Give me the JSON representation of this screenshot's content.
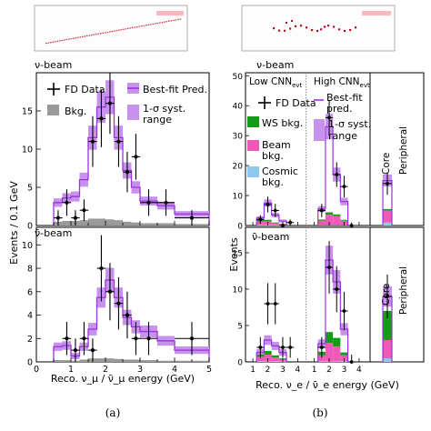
{
  "captions": {
    "left": "(a)",
    "right": "(b)"
  },
  "chart_data": [
    {
      "id": "numu-nu",
      "type": "histogram",
      "beam_label": "ν-beam",
      "xlim": [
        0,
        5
      ],
      "ylim": [
        0,
        20
      ],
      "yticks": [
        0,
        5,
        10,
        15
      ],
      "legend": {
        "data": "FD Data",
        "bkg": "Bkg.",
        "pred": "Best-fit Pred.",
        "band": [
          "1-σ syst.",
          "range"
        ]
      },
      "edges": [
        0.5,
        0.75,
        1.0,
        1.25,
        1.5,
        1.75,
        2.0,
        2.25,
        2.5,
        2.75,
        3.0,
        3.5,
        4.0,
        5.0
      ],
      "prediction": [
        3.0,
        3.6,
        3.8,
        6.0,
        11.5,
        15.5,
        16.8,
        11.5,
        7.2,
        5.0,
        3.2,
        2.6,
        1.5
      ],
      "background": [
        0.5,
        0.6,
        0.6,
        0.7,
        0.9,
        0.9,
        0.8,
        0.7,
        0.5,
        0.4,
        0.3,
        0.3,
        0.2
      ],
      "data": [
        {
          "x": 0.63,
          "y": 1
        },
        {
          "x": 0.88,
          "y": 3
        },
        {
          "x": 1.13,
          "y": 1
        },
        {
          "x": 1.38,
          "y": 2
        },
        {
          "x": 1.63,
          "y": 11
        },
        {
          "x": 1.88,
          "y": 14
        },
        {
          "x": 2.13,
          "y": 16
        },
        {
          "x": 2.38,
          "y": 11
        },
        {
          "x": 2.63,
          "y": 7
        },
        {
          "x": 2.88,
          "y": 9
        },
        {
          "x": 3.25,
          "y": 3
        },
        {
          "x": 3.75,
          "y": 3
        },
        {
          "x": 4.5,
          "y": 1
        }
      ]
    },
    {
      "id": "numu-nubar",
      "type": "histogram",
      "beam_label": "ν̄-beam",
      "xlim": [
        0,
        5
      ],
      "ylim": [
        0,
        11.5
      ],
      "yticks": [
        0,
        2,
        4,
        6,
        8,
        10
      ],
      "xticks": [
        0,
        1,
        2,
        3,
        4,
        5
      ],
      "xlabel": "Reco. ν_μ / ν̄_μ energy (GeV)",
      "edges": [
        0.5,
        0.75,
        1.0,
        1.25,
        1.5,
        1.75,
        2.0,
        2.25,
        2.5,
        2.75,
        3.0,
        3.5,
        4.0,
        5.0
      ],
      "prediction": [
        1.3,
        1.4,
        0.5,
        1.3,
        2.8,
        5.5,
        7.0,
        5.5,
        3.8,
        3.0,
        2.6,
        1.8,
        1.0
      ],
      "background": [
        0.15,
        0.15,
        0.1,
        0.2,
        0.3,
        0.3,
        0.3,
        0.25,
        0.2,
        0.2,
        0.15,
        0.1,
        0.1
      ],
      "data": [
        {
          "x": 0.88,
          "y": 2
        },
        {
          "x": 1.13,
          "y": 1
        },
        {
          "x": 1.38,
          "y": 2
        },
        {
          "x": 1.63,
          "y": 1
        },
        {
          "x": 1.88,
          "y": 8
        },
        {
          "x": 2.13,
          "y": 6
        },
        {
          "x": 2.38,
          "y": 5
        },
        {
          "x": 2.63,
          "y": 4
        },
        {
          "x": 2.88,
          "y": 2
        },
        {
          "x": 3.25,
          "y": 2
        },
        {
          "x": 4.5,
          "y": 2
        }
      ]
    },
    {
      "id": "nue-nu",
      "type": "histogram",
      "beam_label": "ν-beam",
      "ylim": [
        0,
        51
      ],
      "yticks": [
        0,
        10,
        20,
        30,
        40,
        50
      ],
      "regions": {
        "low": "Low CNN",
        "high": "High CNN",
        "sub": "evt",
        "core": "Core",
        "peripheral": "Peripheral"
      },
      "legend": {
        "data": "FD Data",
        "pred": [
          "Best-fit",
          "pred."
        ],
        "band": [
          "1-σ syst.",
          "range"
        ],
        "ws": "WS bkg.",
        "beam": [
          "Beam",
          "bkg."
        ],
        "cosmic": [
          "Cosmic",
          "bkg."
        ]
      },
      "colors": {
        "ws": "#169b16",
        "beam": "#ef5ab8",
        "cosmic": "#8ec8ec",
        "pred": "#9a33d8",
        "band": "#c792ee"
      },
      "low": {
        "prediction": [
          2.5,
          7.5,
          3.5,
          1.5
        ],
        "beam": [
          1.2,
          1.2,
          0.6,
          0.3
        ],
        "ws": [
          0.5,
          0.5,
          0.2,
          0.1
        ],
        "cosmic": [
          0.2,
          0.2,
          0.2,
          0.2
        ],
        "data": [
          {
            "x": 1.5,
            "y": 2
          },
          {
            "x": 2,
            "y": 7
          },
          {
            "x": 2.5,
            "y": 5
          },
          {
            "x": 3,
            "y": 0
          },
          {
            "x": 3.5,
            "y": 1
          }
        ]
      },
      "high": {
        "prediction": [
          5.5,
          33,
          17,
          8
        ],
        "beam": [
          1.5,
          3.5,
          3,
          1.5
        ],
        "ws": [
          0.4,
          0.8,
          0.6,
          0.3
        ],
        "cosmic": [
          0.1,
          0.1,
          0.1,
          0.1
        ],
        "data": [
          {
            "x": 1.5,
            "y": 5
          },
          {
            "x": 2,
            "y": 36
          },
          {
            "x": 2.5,
            "y": 17
          },
          {
            "x": 3,
            "y": 13
          },
          {
            "x": 3.5,
            "y": 0
          }
        ]
      },
      "peripheral": {
        "prediction": 15,
        "beam": 4,
        "ws": 0.5,
        "cosmic": 1,
        "data": 14
      }
    },
    {
      "id": "nue-nubar",
      "type": "histogram",
      "beam_label": "ν̄-beam",
      "ylim": [
        0,
        18.5
      ],
      "yticks": [
        0,
        5,
        10,
        15
      ],
      "xticks": [
        1,
        2,
        3,
        4
      ],
      "xlabel": "Reco. ν_e / ν̄_e energy (GeV)",
      "ylabel": "Events",
      "regions": {
        "core": "Core",
        "peripheral": "Peripheral"
      },
      "low": {
        "prediction": [
          1.3,
          3.0,
          2.2,
          1.3
        ],
        "beam": [
          0.6,
          0.9,
          0.5,
          0.3
        ],
        "ws": [
          0.3,
          0.5,
          0.3,
          0.1
        ],
        "cosmic": [
          0.1,
          0.1,
          0.1,
          0.1
        ],
        "data": [
          {
            "x": 1.5,
            "y": 2
          },
          {
            "x": 2,
            "y": 8
          },
          {
            "x": 2.5,
            "y": 8
          },
          {
            "x": 3,
            "y": 2
          },
          {
            "x": 3.5,
            "y": 2
          }
        ]
      },
      "high": {
        "prediction": [
          2.5,
          14,
          11,
          4.5
        ],
        "beam": [
          0.8,
          2.5,
          2.0,
          0.8
        ],
        "ws": [
          0.5,
          1.5,
          1.2,
          0.4
        ],
        "cosmic": [
          0.1,
          0.1,
          0.1,
          0.1
        ],
        "data": [
          {
            "x": 1.5,
            "y": 2
          },
          {
            "x": 2,
            "y": 13
          },
          {
            "x": 2.5,
            "y": 10
          },
          {
            "x": 3,
            "y": 7
          },
          {
            "x": 3.5,
            "y": 0
          }
        ]
      },
      "peripheral": {
        "prediction": 9,
        "beam": 2.5,
        "ws": 4,
        "cosmic": 0.5,
        "data": 9
      }
    }
  ],
  "shared": {
    "left_ylabel": "Events / 0.1 GeV",
    "right_ylabel": "Events"
  }
}
